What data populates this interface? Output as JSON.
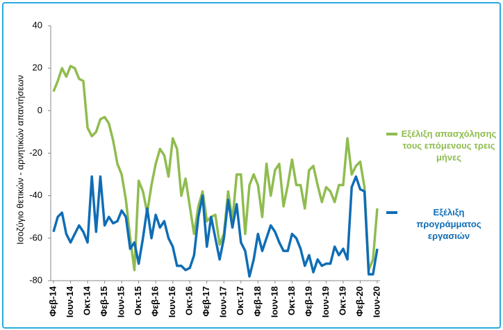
{
  "chart_data": {
    "type": "line",
    "y_label": "Ισοζύγιο θετικών - αρνητικών απαντήσεων",
    "categories": [
      "Φεβ-14",
      null,
      null,
      null,
      "Ιουν-14",
      null,
      null,
      null,
      "Οκτ-14",
      null,
      null,
      null,
      "Φεβ-15",
      null,
      null,
      null,
      "Ιουν-15",
      null,
      null,
      null,
      "Οκτ-15",
      null,
      null,
      null,
      "Φεβ-16",
      null,
      null,
      null,
      "Ιουν-16",
      null,
      null,
      null,
      "Οκτ-16",
      null,
      null,
      null,
      "Φεβ-17",
      null,
      null,
      null,
      "Ιουν-17",
      null,
      null,
      null,
      "Οκτ-17",
      null,
      null,
      null,
      "Φεβ-18",
      null,
      null,
      null,
      "Ιουν-18",
      null,
      null,
      null,
      "Οκτ-18",
      null,
      null,
      null,
      "Φεβ-19",
      null,
      null,
      null,
      "Ιουν-19",
      null,
      null,
      null,
      "Οκτ-19",
      null,
      null,
      null,
      "Φεβ-20",
      null,
      null,
      null,
      "Ιουν-20"
    ],
    "series": [
      {
        "name": "Εξέλιξη απασχόλησης τους επόμενους τρεις μήνες",
        "color": "#8fbc4f",
        "values": [
          9,
          14,
          20,
          16,
          21,
          20,
          15,
          14,
          -8,
          -12,
          -10,
          -4,
          -3,
          -6,
          -14,
          -25,
          -30,
          -42,
          -60,
          -75,
          -33,
          -38,
          -48,
          -35,
          -25,
          -18,
          -21,
          -31,
          -13,
          -18,
          -40,
          -32,
          -45,
          -58,
          -45,
          -38,
          -52,
          -50,
          -49,
          -63,
          -58,
          -38,
          -52,
          -30,
          -30,
          -58,
          -35,
          -30,
          -35,
          -50,
          -25,
          -40,
          -28,
          -25,
          -45,
          -35,
          -23,
          -35,
          -35,
          -46,
          -28,
          -26,
          -35,
          -43,
          -36,
          -38,
          -43,
          -35,
          -35,
          -13,
          -30,
          -26,
          -24,
          -36,
          -75,
          -70,
          -46
        ]
      },
      {
        "name": "Εξέλιξη προγράμματος εργασιών",
        "color": "#0f6db5",
        "values": [
          -57,
          -50,
          -48,
          -58,
          -62,
          -58,
          -54,
          -57,
          -62,
          -31,
          -57,
          -31,
          -54,
          -50,
          -53,
          -52,
          -47,
          -50,
          -65,
          -62,
          -72,
          -60,
          -46,
          -60,
          -49,
          -55,
          -52,
          -60,
          -64,
          -73,
          -73,
          -75,
          -74,
          -68,
          -50,
          -40,
          -64,
          -50,
          -60,
          -70,
          -60,
          -42,
          -55,
          -44,
          -62,
          -66,
          -78,
          -70,
          -58,
          -66,
          -60,
          -54,
          -57,
          -62,
          -66,
          -66,
          -58,
          -60,
          -65,
          -73,
          -68,
          -76,
          -70,
          -73,
          -72,
          -72,
          -64,
          -68,
          -65,
          -70,
          -36,
          -31,
          -37,
          -38,
          -77,
          -77,
          -65
        ]
      }
    ],
    "ylim": [
      -80,
      40
    ],
    "yticks": [
      -80,
      -60,
      -40,
      -20,
      0,
      20,
      40
    ],
    "grid": false
  }
}
